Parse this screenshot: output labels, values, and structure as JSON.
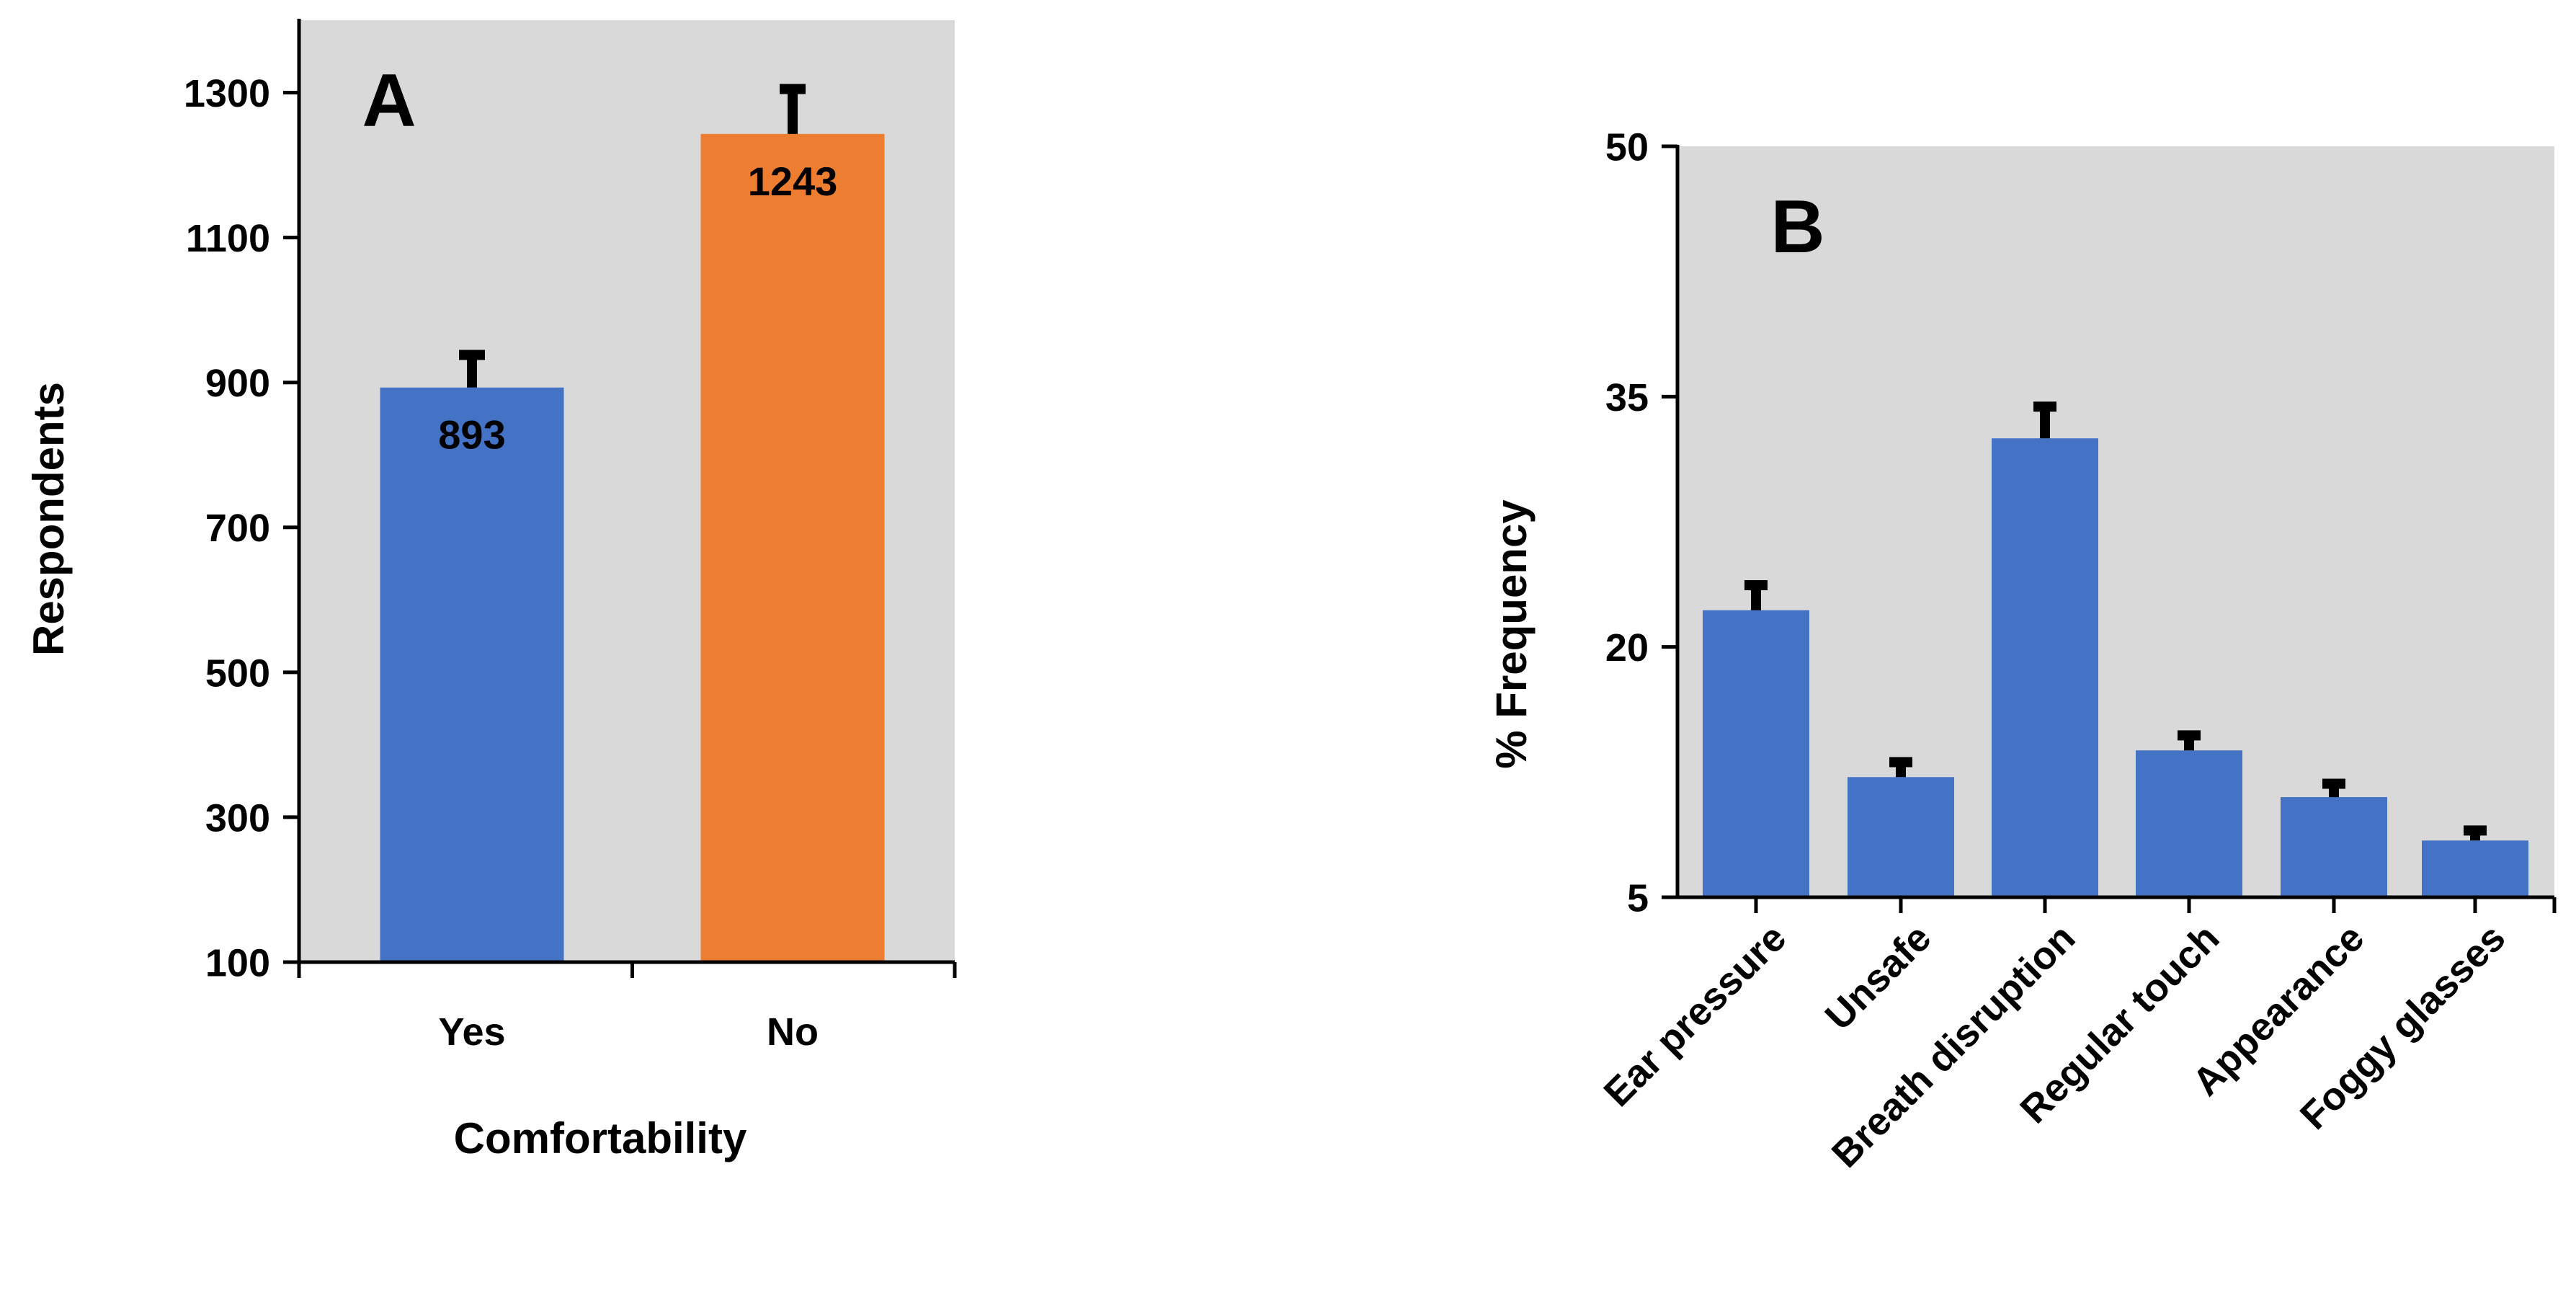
{
  "chart_data": [
    {
      "panel_label": "A",
      "type": "bar",
      "categories": [
        "Yes",
        "No"
      ],
      "values": [
        893,
        1243
      ],
      "errors": [
        45,
        62
      ],
      "value_labels": [
        "893",
        "1243"
      ],
      "bar_colors": [
        "#4472C4",
        "#ED7D31"
      ],
      "xlabel": "Comfortability",
      "ylabel": "Respondents",
      "ylim": [
        100,
        1400
      ],
      "yticks": [
        100,
        300,
        500,
        700,
        900,
        1100,
        1300
      ],
      "tick_labels": [
        "100",
        "300",
        "500",
        "700",
        "900",
        "1100",
        "1300"
      ],
      "background": "#D9D9D9",
      "grid": false
    },
    {
      "panel_label": "B",
      "type": "bar",
      "categories": [
        "Ear pressure",
        "Unsafe",
        "Breath disruption",
        "Regular touch",
        "Appearance",
        "Foggy glasses"
      ],
      "values": [
        22.2,
        12.2,
        32.5,
        13.8,
        11.0,
        8.4
      ],
      "errors": [
        1.5,
        0.9,
        1.9,
        0.9,
        0.8,
        0.6
      ],
      "bar_colors": [
        "#4472C4",
        "#4472C4",
        "#4472C4",
        "#4472C4",
        "#4472C4",
        "#4472C4"
      ],
      "xlabel": "",
      "ylabel": "% Frequency",
      "ylim": [
        5,
        50
      ],
      "yticks": [
        5,
        20,
        35,
        50
      ],
      "tick_labels": [
        "5",
        "20",
        "35",
        "50"
      ],
      "background": "#D9D9D9",
      "grid": false
    }
  ]
}
